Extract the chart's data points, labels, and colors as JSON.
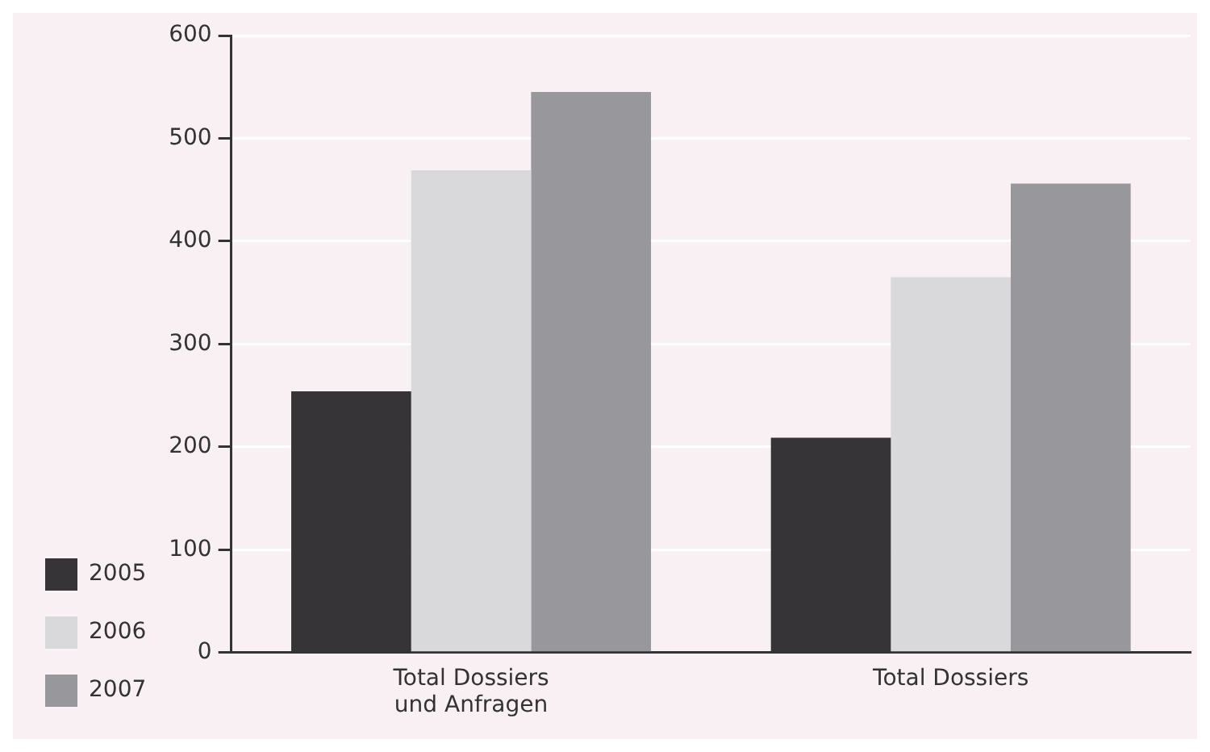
{
  "chart_data": {
    "type": "bar",
    "categories": [
      "Total Dossiers\nund Anfragen",
      "Total Dossiers"
    ],
    "series": [
      {
        "name": "2005",
        "color": "#363436",
        "values": [
          254,
          209
        ]
      },
      {
        "name": "2006",
        "color": "#d9d9db",
        "values": [
          469,
          365
        ]
      },
      {
        "name": "2007",
        "color": "#98979b",
        "values": [
          545,
          456
        ]
      }
    ],
    "ylim": [
      0,
      600
    ],
    "yticks": [
      0,
      100,
      200,
      300,
      400,
      500,
      600
    ],
    "grid": "y",
    "legend": "left"
  }
}
